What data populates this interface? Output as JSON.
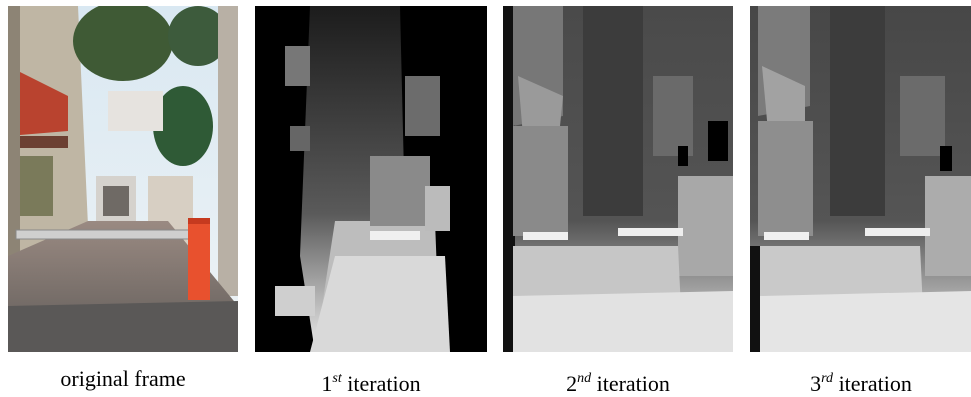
{
  "figure": {
    "panels": [
      {
        "caption": "original frame"
      },
      {
        "caption_number": "1",
        "caption_suffix": "st",
        "caption_word": "iteration"
      },
      {
        "caption_number": "2",
        "caption_suffix": "nd",
        "caption_word": "iteration"
      },
      {
        "caption_number": "3",
        "caption_suffix": "rd",
        "caption_word": "iteration"
      }
    ]
  }
}
